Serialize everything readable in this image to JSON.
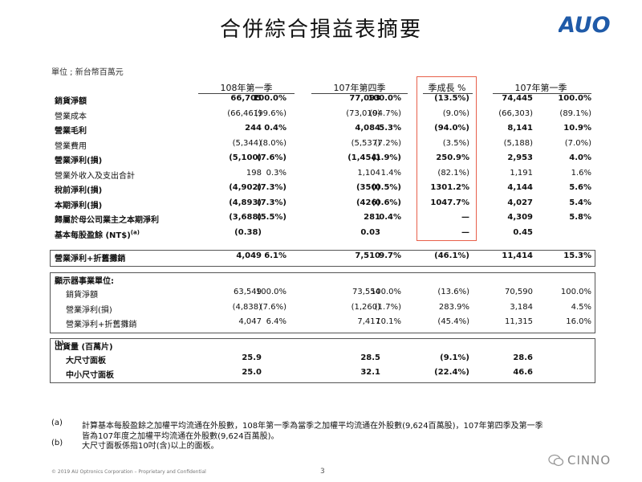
{
  "title": "合併綜合損益表摘要",
  "logo_text": "AUO",
  "unit_label": "單位 ; 新台幣百萬元",
  "columns": [
    "108年第一季",
    "107年第四季",
    "季成長 %",
    "107年第一季"
  ],
  "rows": [
    {
      "label": "銷貨淨額",
      "bold": true,
      "v": [
        "66,705",
        "100.0%",
        "77,093",
        "100.0%",
        "(13.5%)",
        "74,445",
        "100.0%"
      ]
    },
    {
      "label": "營業成本",
      "bold": false,
      "v": [
        "(66,461)",
        "(99.6%)",
        "(73,010)",
        "(94.7%)",
        "(9.0%)",
        "(66,303)",
        "(89.1%)"
      ]
    },
    {
      "label": "營業毛利",
      "bold": true,
      "v": [
        "244",
        "0.4%",
        "4,084",
        "5.3%",
        "(94.0%)",
        "8,141",
        "10.9%"
      ]
    },
    {
      "label": "營業費用",
      "bold": false,
      "v": [
        "(5,344)",
        "(8.0%)",
        "(5,537)",
        "(7.2%)",
        "(3.5%)",
        "(5,188)",
        "(7.0%)"
      ]
    },
    {
      "label": "營業淨利(損)",
      "bold": true,
      "v": [
        "(5,100)",
        "(7.6%)",
        "(1,454)",
        "(1.9%)",
        "250.9%",
        "2,953",
        "4.0%"
      ]
    },
    {
      "label": "營業外收入及支出合計",
      "bold": false,
      "v": [
        "198",
        "0.3%",
        "1,104",
        "1.4%",
        "(82.1%)",
        "1,191",
        "1.6%"
      ]
    },
    {
      "label": "稅前淨利(損)",
      "bold": true,
      "v": [
        "(4,902)",
        "(7.3%)",
        "(350)",
        "(0.5%)",
        "1301.2%",
        "4,144",
        "5.6%"
      ]
    },
    {
      "label": "本期淨利(損)",
      "bold": true,
      "v": [
        "(4,893)",
        "(7.3%)",
        "(426)",
        "(0.6%)",
        "1047.7%",
        "4,027",
        "5.4%"
      ]
    },
    {
      "label": "歸屬於母公司業主之本期淨利",
      "bold": true,
      "v": [
        "(3,688)",
        "(5.5%)",
        "281",
        "0.4%",
        "—",
        "4,309",
        "5.8%"
      ]
    },
    {
      "label": "基本每股盈餘 (NT$)",
      "sup": "(a)",
      "bold": true,
      "v": [
        "(0.38)",
        "",
        "0.03",
        "",
        "—",
        "0.45",
        ""
      ]
    }
  ],
  "ebitda_row": {
    "label": "營業淨利+折舊攤銷",
    "v": [
      "4,049",
      "6.1%",
      "7,510",
      "9.7%",
      "(46.1%)",
      "11,414",
      "15.3%"
    ]
  },
  "display_section": {
    "title": "顯示器事業單位:",
    "rows": [
      {
        "label": "銷貨淨額",
        "v": [
          "63,549",
          "100.0%",
          "73,554",
          "100.0%",
          "(13.6%)",
          "70,590",
          "100.0%"
        ]
      },
      {
        "label": "營業淨利(損)",
        "v": [
          "(4,838)",
          "(7.6%)",
          "(1,260)",
          "(1.7%)",
          "283.9%",
          "3,184",
          "4.5%"
        ]
      },
      {
        "label": "營業淨利+折舊攤銷",
        "v": [
          "4,047",
          "6.4%",
          "7,417",
          "10.1%",
          "(45.4%)",
          "11,315",
          "16.0%"
        ]
      }
    ]
  },
  "shipment_section": {
    "title": "出貨量 (百萬片)",
    "sup": "(b)",
    "rows": [
      {
        "label": "大尺寸面板",
        "v": [
          "25.9",
          "",
          "28.5",
          "",
          "(9.1%)",
          "28.6",
          ""
        ]
      },
      {
        "label": "中小尺寸面板",
        "v": [
          "25.0",
          "",
          "32.1",
          "",
          "(22.4%)",
          "46.6",
          ""
        ]
      }
    ]
  },
  "notes": [
    {
      "mark": "(a)",
      "text": "計算基本每股盈餘之加權平均流通在外股數，108年第一季為當季之加權平均流通在外股數(9,624百萬股)，107年第四季及第一季"
    },
    {
      "mark": "",
      "text": "皆為107年度之加權平均流通在外股數(9,624百萬股)。"
    },
    {
      "mark": "(b)",
      "text": "大尺寸面板係指10吋(含)以上的面板。"
    }
  ],
  "footer": "© 2019 AU Optronics Corporation – Proprietary and Confidential",
  "page_number": "3",
  "watermark": "CINNO"
}
